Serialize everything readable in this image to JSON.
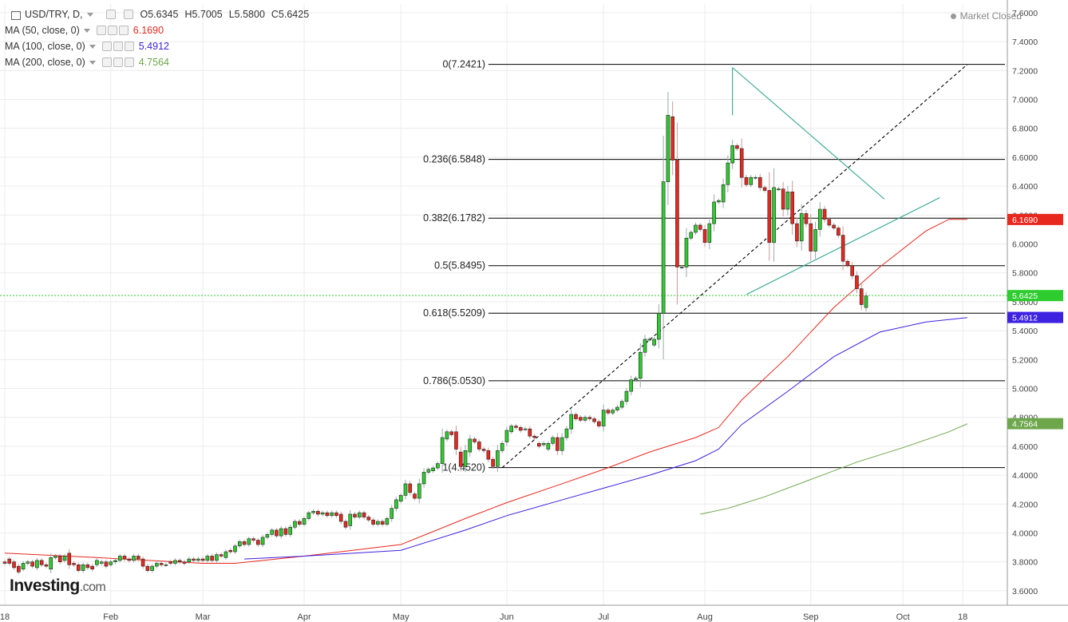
{
  "header": {
    "symbol": "USD/TRY, D,",
    "open": "O5.6345",
    "high": "H5.7005",
    "low": "L5.5800",
    "close": "C5.6425",
    "market_status": "Market Closed"
  },
  "legend": [
    {
      "label": "MA (50, close, 0)",
      "value": "6.1690",
      "color": "#e8281e"
    },
    {
      "label": "MA (100, close, 0)",
      "value": "5.4912",
      "color": "#3d22e0"
    },
    {
      "label": "MA (200, close, 0)",
      "value": "4.7564",
      "color": "#6ea64c"
    }
  ],
  "logo": {
    "main": "Investing",
    "suffix": ".com"
  },
  "colors": {
    "up": "#2ecc2e",
    "down": "#e8281e",
    "grid": "#ececec",
    "fib": "#000000",
    "trend": "#33a68c"
  },
  "chart_data": {
    "type": "candlestick",
    "y_range": [
      3.5,
      7.66
    ],
    "y_ticks": [
      3.6,
      3.8,
      4.0,
      4.2,
      4.4,
      4.6,
      4.8,
      5.0,
      5.2,
      5.4,
      5.6,
      5.8,
      6.0,
      6.2,
      6.4,
      6.6,
      6.8,
      7.0,
      7.2,
      7.4,
      7.6
    ],
    "y_tick_labels": [
      "3.6000",
      "3.8000",
      "4.0000",
      "4.2000",
      "4.4000",
      "4.6000",
      "4.8000",
      "5.0000",
      "5.2000",
      "5.4000",
      "5.6000",
      "5.8000",
      "6.0000",
      "6.2000",
      "6.4000",
      "6.6000",
      "6.8000",
      "7.0000",
      "7.2000",
      "7.4000",
      "7.6000"
    ],
    "x_labels": [
      {
        "label": "18",
        "bar": 0
      },
      {
        "label": "Feb",
        "bar": 23
      },
      {
        "label": "Mar",
        "bar": 43
      },
      {
        "label": "Apr",
        "bar": 65
      },
      {
        "label": "May",
        "bar": 86
      },
      {
        "label": "Jun",
        "bar": 109
      },
      {
        "label": "Jul",
        "bar": 130
      },
      {
        "label": "Aug",
        "bar": 152
      },
      {
        "label": "Sep",
        "bar": 175
      },
      {
        "label": "Oct",
        "bar": 195
      },
      {
        "label": "18",
        "bar": 208
      }
    ],
    "candle_keys": [
      [
        3.8,
        3.79
      ],
      [
        3.82,
        3.79
      ],
      [
        3.8,
        3.76
      ],
      [
        3.77,
        3.73
      ],
      [
        3.75,
        3.79
      ],
      [
        3.79,
        3.8
      ],
      [
        3.8,
        3.77
      ],
      [
        3.76,
        3.81
      ],
      [
        3.81,
        3.78
      ],
      [
        3.78,
        3.77
      ],
      [
        3.75,
        3.83
      ],
      [
        3.83,
        3.84
      ],
      [
        3.84,
        3.8
      ],
      [
        3.81,
        3.84
      ],
      [
        3.86,
        3.78
      ],
      [
        3.79,
        3.78
      ],
      [
        3.78,
        3.74
      ],
      [
        3.74,
        3.78
      ],
      [
        3.78,
        3.76
      ],
      [
        3.77,
        3.75
      ],
      [
        3.78,
        3.81
      ],
      [
        3.79,
        3.8
      ],
      [
        3.8,
        3.77
      ],
      [
        3.78,
        3.8
      ],
      [
        3.8,
        3.81
      ],
      [
        3.81,
        3.84
      ],
      [
        3.84,
        3.82
      ],
      [
        3.82,
        3.81
      ],
      [
        3.81,
        3.84
      ],
      [
        3.84,
        3.82
      ],
      [
        3.82,
        3.77
      ],
      [
        3.77,
        3.74
      ],
      [
        3.74,
        3.77
      ],
      [
        3.77,
        3.79
      ],
      [
        3.79,
        3.78
      ],
      [
        3.78,
        3.78
      ],
      [
        3.8,
        3.79
      ],
      [
        3.79,
        3.81
      ],
      [
        3.81,
        3.8
      ],
      [
        3.8,
        3.79
      ],
      [
        3.8,
        3.82
      ],
      [
        3.82,
        3.81
      ],
      [
        3.81,
        3.82
      ],
      [
        3.82,
        3.81
      ],
      [
        3.81,
        3.84
      ],
      [
        3.84,
        3.81
      ],
      [
        3.81,
        3.85
      ],
      [
        3.85,
        3.84
      ],
      [
        3.83,
        3.87
      ],
      [
        3.88,
        3.87
      ],
      [
        3.87,
        3.91
      ],
      [
        3.91,
        3.94
      ],
      [
        3.94,
        3.92
      ],
      [
        3.92,
        3.96
      ],
      [
        3.96,
        3.95
      ],
      [
        3.95,
        3.92
      ],
      [
        3.92,
        3.97
      ],
      [
        3.97,
        3.99
      ],
      [
        3.99,
        4.02
      ],
      [
        4.02,
        3.98
      ],
      [
        3.98,
        4.03
      ],
      [
        4.03,
        3.99
      ],
      [
        3.99,
        4.04
      ],
      [
        4.04,
        4.08
      ],
      [
        4.08,
        4.06
      ],
      [
        4.06,
        4.1
      ],
      [
        4.1,
        4.14
      ],
      [
        4.14,
        4.15
      ],
      [
        4.15,
        4.13
      ],
      [
        4.13,
        4.14
      ],
      [
        4.14,
        4.12
      ],
      [
        4.12,
        4.14
      ],
      [
        4.14,
        4.12
      ],
      [
        4.13,
        4.08
      ],
      [
        4.08,
        4.04
      ],
      [
        4.05,
        4.13
      ],
      [
        4.13,
        4.11
      ],
      [
        4.11,
        4.14
      ],
      [
        4.14,
        4.11
      ],
      [
        4.11,
        4.09
      ],
      [
        4.09,
        4.06
      ],
      [
        4.06,
        4.08
      ],
      [
        4.08,
        4.06
      ],
      [
        4.06,
        4.1
      ],
      [
        4.1,
        4.17
      ],
      [
        4.17,
        4.23
      ],
      [
        4.22,
        4.26
      ],
      [
        4.26,
        4.34
      ],
      [
        4.34,
        4.28
      ],
      [
        4.27,
        4.24
      ],
      [
        4.24,
        4.34
      ],
      [
        4.34,
        4.42
      ],
      [
        4.42,
        4.44
      ],
      [
        4.43,
        4.45
      ],
      [
        4.45,
        4.48
      ],
      [
        4.48,
        4.66
      ],
      [
        4.65,
        4.7
      ],
      [
        4.7,
        4.68
      ],
      [
        4.7,
        4.58
      ],
      [
        4.56,
        4.46
      ],
      [
        4.46,
        4.57
      ],
      [
        4.56,
        4.65
      ],
      [
        4.65,
        4.63
      ],
      [
        4.63,
        4.58
      ],
      [
        4.58,
        4.57
      ],
      [
        4.57,
        4.51
      ],
      [
        4.51,
        4.46
      ],
      [
        4.46,
        4.57
      ],
      [
        4.57,
        4.62
      ],
      [
        4.63,
        4.71
      ],
      [
        4.7,
        4.74
      ],
      [
        4.74,
        4.73
      ],
      [
        4.73,
        4.71
      ],
      [
        4.72,
        4.72
      ],
      [
        4.72,
        4.67
      ],
      [
        4.67,
        4.66
      ],
      [
        4.62,
        4.6
      ],
      [
        4.61,
        4.62
      ],
      [
        4.58,
        4.62
      ],
      [
        4.62,
        4.66
      ],
      [
        4.66,
        4.57
      ],
      [
        4.57,
        4.66
      ],
      [
        4.66,
        4.72
      ],
      [
        4.72,
        4.82
      ],
      [
        4.82,
        4.79
      ],
      [
        4.8,
        4.78
      ],
      [
        4.78,
        4.8
      ],
      [
        4.8,
        4.79
      ],
      [
        4.79,
        4.77
      ],
      [
        4.77,
        4.74
      ],
      [
        4.74,
        4.85
      ],
      [
        4.85,
        4.83
      ],
      [
        4.83,
        4.85
      ],
      [
        4.85,
        4.87
      ],
      [
        4.87,
        4.91
      ],
      [
        4.91,
        4.98
      ],
      [
        4.98,
        5.06
      ],
      [
        5.06,
        5.07
      ],
      [
        5.07,
        5.25
      ],
      [
        5.25,
        5.34
      ],
      [
        5.34,
        5.34
      ],
      [
        5.3,
        5.34
      ],
      [
        5.34,
        5.52
      ],
      [
        5.52,
        6.43
      ],
      [
        6.43,
        6.89
      ],
      [
        6.88,
        6.58
      ],
      [
        6.58,
        5.84
      ],
      [
        5.84,
        5.84
      ],
      [
        5.84,
        6.04
      ],
      [
        6.04,
        6.08
      ],
      [
        6.08,
        6.13
      ],
      [
        6.13,
        6.1
      ],
      [
        6.1,
        6.01
      ],
      [
        6.01,
        6.14
      ],
      [
        6.14,
        6.29
      ],
      [
        6.29,
        6.3
      ],
      [
        6.29,
        6.41
      ],
      [
        6.41,
        6.56
      ],
      [
        6.56,
        6.68
      ],
      [
        6.68,
        6.66
      ],
      [
        6.66,
        6.46
      ],
      [
        6.46,
        6.41
      ],
      [
        6.41,
        6.46
      ],
      [
        6.46,
        6.46
      ],
      [
        6.46,
        6.39
      ],
      [
        6.39,
        6.37
      ],
      [
        6.37,
        6.01
      ],
      [
        6.01,
        6.39
      ],
      [
        6.38,
        6.38
      ],
      [
        6.38,
        6.24
      ],
      [
        6.24,
        6.36
      ],
      [
        6.36,
        6.14
      ],
      [
        6.14,
        6.02
      ],
      [
        6.02,
        6.21
      ],
      [
        6.21,
        6.14
      ],
      [
        6.14,
        5.95
      ],
      [
        5.95,
        6.1
      ],
      [
        6.1,
        6.24
      ],
      [
        6.24,
        6.17
      ],
      [
        6.17,
        6.13
      ],
      [
        6.13,
        6.11
      ],
      [
        6.11,
        6.06
      ],
      [
        6.06,
        5.88
      ],
      [
        5.88,
        5.85
      ],
      [
        5.85,
        5.78
      ],
      [
        5.78,
        5.69
      ],
      [
        5.69,
        5.58
      ],
      [
        5.56,
        5.64
      ]
    ],
    "fib_levels": [
      {
        "label": "0(7.2421)",
        "value": 7.2421
      },
      {
        "label": "0.236(6.5848)",
        "value": 6.5848
      },
      {
        "label": "0.382(6.1782)",
        "value": 6.1782
      },
      {
        "label": "0.5(5.8495)",
        "value": 5.8495
      },
      {
        "label": "0.618(5.5209)",
        "value": 5.5209
      },
      {
        "label": "0.786(5.0530)",
        "value": 5.053
      },
      {
        "label": "1(4.4520)",
        "value": 4.452
      }
    ],
    "price_labels": [
      {
        "value": 6.169,
        "text": "6.1690",
        "color": "#e8281e"
      },
      {
        "value": 5.6425,
        "text": "5.6425",
        "color": "#2ecc2e"
      },
      {
        "value": 5.4912,
        "text": "5.4912",
        "color": "#3d22e0"
      },
      {
        "value": 4.7564,
        "text": "4.7564",
        "color": "#6ea64c"
      }
    ],
    "last_price": 5.6425,
    "ma_lines": [
      {
        "name": "MA (50, close, 0)",
        "color": "#e8281e",
        "points": [
          [
            0,
            3.86
          ],
          [
            20,
            3.83
          ],
          [
            43,
            3.79
          ],
          [
            50,
            3.79
          ],
          [
            65,
            3.84
          ],
          [
            86,
            3.92
          ],
          [
            100,
            4.1
          ],
          [
            109,
            4.21
          ],
          [
            120,
            4.33
          ],
          [
            130,
            4.44
          ],
          [
            140,
            4.56
          ],
          [
            150,
            4.66
          ],
          [
            155,
            4.73
          ],
          [
            160,
            4.92
          ],
          [
            170,
            5.22
          ],
          [
            180,
            5.56
          ],
          [
            190,
            5.84
          ],
          [
            200,
            6.09
          ],
          [
            205,
            6.17
          ],
          [
            209,
            6.17
          ]
        ]
      },
      {
        "name": "MA (100, close, 0)",
        "color": "#3d22e0",
        "points": [
          [
            52,
            3.82
          ],
          [
            65,
            3.84
          ],
          [
            86,
            3.88
          ],
          [
            100,
            4.02
          ],
          [
            109,
            4.12
          ],
          [
            120,
            4.22
          ],
          [
            130,
            4.31
          ],
          [
            140,
            4.4
          ],
          [
            150,
            4.5
          ],
          [
            155,
            4.58
          ],
          [
            160,
            4.75
          ],
          [
            170,
            4.98
          ],
          [
            180,
            5.22
          ],
          [
            190,
            5.39
          ],
          [
            200,
            5.46
          ],
          [
            209,
            5.49
          ]
        ]
      },
      {
        "name": "MA (200, close, 0)",
        "color": "#6ea64c",
        "points": [
          [
            151,
            4.13
          ],
          [
            157,
            4.17
          ],
          [
            165,
            4.25
          ],
          [
            175,
            4.37
          ],
          [
            185,
            4.49
          ],
          [
            195,
            4.59
          ],
          [
            205,
            4.7
          ],
          [
            209,
            4.756
          ]
        ]
      }
    ],
    "trendlines": [
      {
        "from": [
          108,
          4.452
        ],
        "to": [
          209,
          7.2421
        ],
        "style": "dashed",
        "color": "#000000"
      },
      {
        "from": [
          158,
          7.22
        ],
        "to": [
          191,
          6.31
        ],
        "style": "solid",
        "color": "#33a68c"
      },
      {
        "from": [
          161,
          5.65
        ],
        "to": [
          203,
          6.32
        ],
        "style": "solid",
        "color": "#33a68c"
      },
      {
        "from": [
          158,
          7.22
        ],
        "to": [
          158,
          6.89
        ],
        "style": "solid",
        "color": "#33a68c"
      }
    ]
  }
}
